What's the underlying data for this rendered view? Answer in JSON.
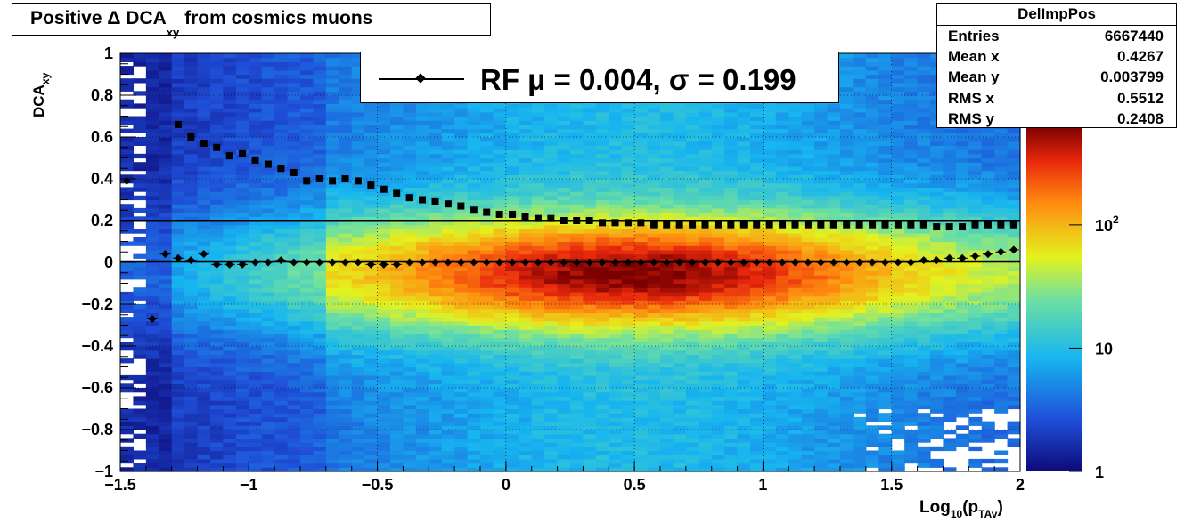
{
  "title": {
    "main": "Positive Δ DCA",
    "sub": "xy",
    "rest": " from cosmics muons"
  },
  "stats": {
    "name": "DelImpPos",
    "rows": [
      {
        "key": "Entries",
        "value": "6667440"
      },
      {
        "key": "Mean x",
        "value": "0.4267"
      },
      {
        "key": "Mean y",
        "value": "0.003799"
      },
      {
        "key": "RMS x",
        "value": "0.5512"
      },
      {
        "key": "RMS y",
        "value": "0.2408"
      }
    ]
  },
  "legend": {
    "label": "RF μ =  0.004, σ =   0.199"
  },
  "axes": {
    "ylabel_main": "DCA",
    "ylabel_sub": "xy",
    "xlabel_main": "Log",
    "xlabel_sub1": "10",
    "xlabel_mid": "(p",
    "xlabel_sub2": "TAv",
    "xlabel_end": ")"
  },
  "chart_data": {
    "type": "heatmap",
    "x_range": [
      -1.5,
      2
    ],
    "y_range": [
      -1,
      1
    ],
    "x_ticks": [
      "−1.5",
      "−1",
      "−0.5",
      "0",
      "0.5",
      "1",
      "1.5",
      "2"
    ],
    "x_tick_values": [
      -1.5,
      -1,
      -0.5,
      0,
      0.5,
      1,
      1.5,
      2
    ],
    "y_ticks": [
      "1",
      "0.8",
      "0.6",
      "0.4",
      "0.2",
      "0",
      "−0.2",
      "−0.4",
      "−0.6",
      "−0.8",
      "−1"
    ],
    "y_tick_values": [
      1,
      0.8,
      0.6,
      0.4,
      0.2,
      0,
      -0.2,
      -0.4,
      -0.6,
      -0.8,
      -1
    ],
    "grid": true,
    "z_scale": "log",
    "z_ticks": [
      {
        "label": "1",
        "value": 1
      },
      {
        "label": "10",
        "value": 10
      },
      {
        "label": "10",
        "exp": "2",
        "value": 100
      }
    ],
    "density_peak": {
      "x": 0.5,
      "y": -0.05
    },
    "mean_line_y": 0.004,
    "sigma_line_y": 0.199,
    "mean_points": {
      "x": [
        -1.475,
        -1.375,
        -1.325,
        -1.275,
        -1.225,
        -1.175,
        -1.125,
        -1.075,
        -1.025,
        -0.975,
        -0.925,
        -0.875,
        -0.825,
        -0.775,
        -0.725,
        -0.675,
        -0.625,
        -0.575,
        -0.525,
        -0.475,
        -0.425,
        -0.375,
        -0.325,
        -0.275,
        -0.225,
        -0.175,
        -0.125,
        -0.075,
        -0.025,
        0.025,
        0.075,
        0.125,
        0.175,
        0.225,
        0.275,
        0.325,
        0.375,
        0.425,
        0.475,
        0.525,
        0.575,
        0.625,
        0.675,
        0.725,
        0.775,
        0.825,
        0.875,
        0.925,
        0.975,
        1.025,
        1.075,
        1.125,
        1.175,
        1.225,
        1.275,
        1.325,
        1.375,
        1.425,
        1.475,
        1.525,
        1.575,
        1.625,
        1.675,
        1.725,
        1.775,
        1.825,
        1.875,
        1.925,
        1.975
      ],
      "y": [
        0.39,
        -0.27,
        0.04,
        0.02,
        0.01,
        0.04,
        -0.01,
        -0.01,
        -0.01,
        0,
        0,
        0.01,
        0,
        0,
        0,
        0,
        0,
        0,
        -0.01,
        -0.01,
        -0.01,
        0,
        0,
        0,
        0,
        0,
        0,
        0,
        0,
        0,
        0,
        0,
        0,
        0,
        0,
        0,
        0,
        0,
        0,
        0,
        0,
        0,
        0,
        0,
        0,
        0,
        0,
        0,
        0,
        0,
        0,
        0,
        0,
        0,
        0,
        0,
        0,
        0,
        0,
        0,
        0,
        0.01,
        0.01,
        0.02,
        0.02,
        0.03,
        0.04,
        0.05,
        0.06
      ]
    },
    "sigma_points": {
      "x": [
        -1.275,
        -1.225,
        -1.175,
        -1.125,
        -1.075,
        -1.025,
        -0.975,
        -0.925,
        -0.875,
        -0.825,
        -0.775,
        -0.725,
        -0.675,
        -0.625,
        -0.575,
        -0.525,
        -0.475,
        -0.425,
        -0.375,
        -0.325,
        -0.275,
        -0.225,
        -0.175,
        -0.125,
        -0.075,
        -0.025,
        0.025,
        0.075,
        0.125,
        0.175,
        0.225,
        0.275,
        0.325,
        0.375,
        0.425,
        0.475,
        0.525,
        0.575,
        0.625,
        0.675,
        0.725,
        0.775,
        0.825,
        0.875,
        0.925,
        0.975,
        1.025,
        1.075,
        1.125,
        1.175,
        1.225,
        1.275,
        1.325,
        1.375,
        1.425,
        1.475,
        1.525,
        1.575,
        1.625,
        1.675,
        1.725,
        1.775,
        1.825,
        1.875,
        1.925,
        1.975
      ],
      "y": [
        0.66,
        0.6,
        0.57,
        0.55,
        0.51,
        0.52,
        0.49,
        0.47,
        0.45,
        0.43,
        0.39,
        0.4,
        0.39,
        0.4,
        0.39,
        0.37,
        0.35,
        0.33,
        0.31,
        0.3,
        0.29,
        0.28,
        0.27,
        0.25,
        0.24,
        0.23,
        0.23,
        0.22,
        0.21,
        0.21,
        0.2,
        0.2,
        0.2,
        0.19,
        0.19,
        0.19,
        0.19,
        0.18,
        0.18,
        0.18,
        0.18,
        0.18,
        0.18,
        0.18,
        0.18,
        0.18,
        0.18,
        0.18,
        0.18,
        0.18,
        0.18,
        0.18,
        0.18,
        0.18,
        0.18,
        0.18,
        0.18,
        0.18,
        0.18,
        0.17,
        0.17,
        0.17,
        0.18,
        0.18,
        0.18,
        0.18,
        0.18,
        0.18,
        0.18
      ]
    }
  }
}
